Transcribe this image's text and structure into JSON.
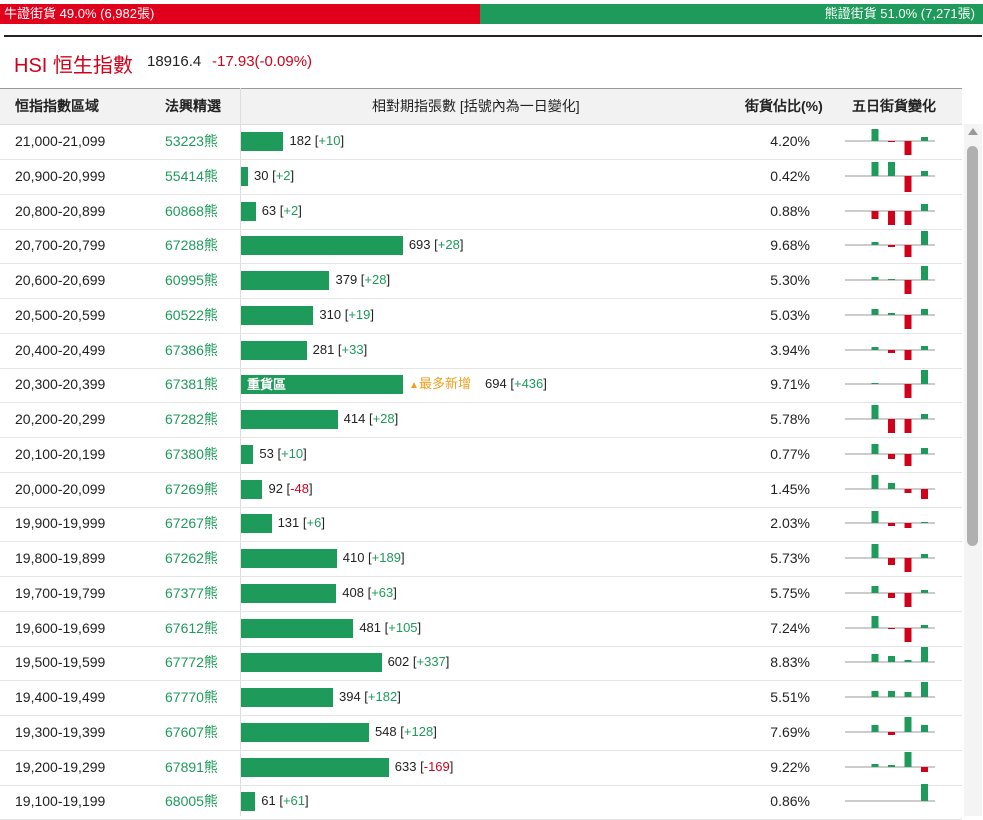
{
  "summary": {
    "bull": {
      "label": "牛證街貨",
      "pct": 49.0,
      "pct_label": "49.0%",
      "count_label": "(6,982張)"
    },
    "bear": {
      "label": "熊證街貨",
      "pct": 51.0,
      "pct_label": "51.0%",
      "count_label": "(7,271張)"
    }
  },
  "header": {
    "title": "HSI 恒生指數",
    "price": "18916.4",
    "change": "-17.93(-0.09%)"
  },
  "table": {
    "columns": [
      "恒指指數區域",
      "法興精選",
      "相對期指張數 [括號內為一日變化]",
      "街貨佔比(%)",
      "五日街貨變化"
    ],
    "rows": [
      {
        "range": "21,000-21,099",
        "warrant": "53223熊",
        "count": 182,
        "change": "+10",
        "share": "4.20%",
        "five_day": [
          0,
          12,
          -1,
          -14,
          4
        ]
      },
      {
        "range": "20,900-20,999",
        "warrant": "55414熊",
        "count": 30,
        "change": "+2",
        "share": "0.42%",
        "five_day": [
          0,
          14,
          14,
          -16,
          5
        ]
      },
      {
        "range": "20,800-20,899",
        "warrant": "60868熊",
        "count": 63,
        "change": "+2",
        "share": "0.88%",
        "five_day": [
          0,
          -8,
          -14,
          -14,
          7
        ]
      },
      {
        "range": "20,700-20,799",
        "warrant": "67288熊",
        "count": 693,
        "change": "+28",
        "share": "9.68%",
        "five_day": [
          0,
          3,
          -2,
          -12,
          14
        ]
      },
      {
        "range": "20,600-20,699",
        "warrant": "60995熊",
        "count": 379,
        "change": "+28",
        "share": "5.30%",
        "five_day": [
          0,
          3,
          1,
          -14,
          14
        ]
      },
      {
        "range": "20,500-20,599",
        "warrant": "60522熊",
        "count": 310,
        "change": "+19",
        "share": "5.03%",
        "five_day": [
          0,
          6,
          2,
          -14,
          6
        ]
      },
      {
        "range": "20,400-20,499",
        "warrant": "67386熊",
        "count": 281,
        "change": "+33",
        "share": "3.94%",
        "five_day": [
          0,
          3,
          -3,
          -10,
          4
        ]
      },
      {
        "range": "20,300-20,399",
        "warrant": "67381熊",
        "count": 694,
        "change": "+436",
        "share": "9.71%",
        "five_day": [
          0,
          1,
          0,
          -14,
          14
        ],
        "tag": "重貨區",
        "note": "最多新增"
      },
      {
        "range": "20,200-20,299",
        "warrant": "67282熊",
        "count": 414,
        "change": "+28",
        "share": "5.78%",
        "five_day": [
          0,
          14,
          -14,
          -14,
          5
        ]
      },
      {
        "range": "20,100-20,199",
        "warrant": "67380熊",
        "count": 53,
        "change": "+10",
        "share": "0.77%",
        "five_day": [
          0,
          10,
          -5,
          -12,
          6
        ]
      },
      {
        "range": "20,000-20,099",
        "warrant": "67269熊",
        "count": 92,
        "change": "-48",
        "share": "1.45%",
        "five_day": [
          0,
          14,
          6,
          -4,
          -10
        ]
      },
      {
        "range": "19,900-19,999",
        "warrant": "67267熊",
        "count": 131,
        "change": "+6",
        "share": "2.03%",
        "five_day": [
          0,
          12,
          -3,
          -5,
          1
        ]
      },
      {
        "range": "19,800-19,899",
        "warrant": "67262熊",
        "count": 410,
        "change": "+189",
        "share": "5.73%",
        "five_day": [
          0,
          14,
          -7,
          -14,
          4
        ]
      },
      {
        "range": "19,700-19,799",
        "warrant": "67377熊",
        "count": 408,
        "change": "+63",
        "share": "5.75%",
        "five_day": [
          0,
          7,
          -5,
          -14,
          3
        ]
      },
      {
        "range": "19,600-19,699",
        "warrant": "67612熊",
        "count": 481,
        "change": "+105",
        "share": "7.24%",
        "five_day": [
          0,
          12,
          -1,
          -14,
          3
        ]
      },
      {
        "range": "19,500-19,599",
        "warrant": "67772熊",
        "count": 602,
        "change": "+337",
        "share": "8.83%",
        "five_day": [
          0,
          8,
          6,
          2,
          15
        ]
      },
      {
        "range": "19,400-19,499",
        "warrant": "67770熊",
        "count": 394,
        "change": "+182",
        "share": "5.51%",
        "five_day": [
          0,
          6,
          6,
          5,
          15
        ]
      },
      {
        "range": "19,300-19,399",
        "warrant": "67607熊",
        "count": 548,
        "change": "+128",
        "share": "7.69%",
        "five_day": [
          0,
          7,
          -3,
          15,
          7
        ]
      },
      {
        "range": "19,200-19,299",
        "warrant": "67891熊",
        "count": 633,
        "change": "-169",
        "share": "9.22%",
        "five_day": [
          0,
          3,
          2,
          15,
          -5
        ]
      },
      {
        "range": "19,100-19,199",
        "warrant": "68005熊",
        "count": 61,
        "change": "+61",
        "share": "0.86%",
        "five_day": [
          0,
          0,
          0,
          0,
          18
        ]
      }
    ]
  }
}
